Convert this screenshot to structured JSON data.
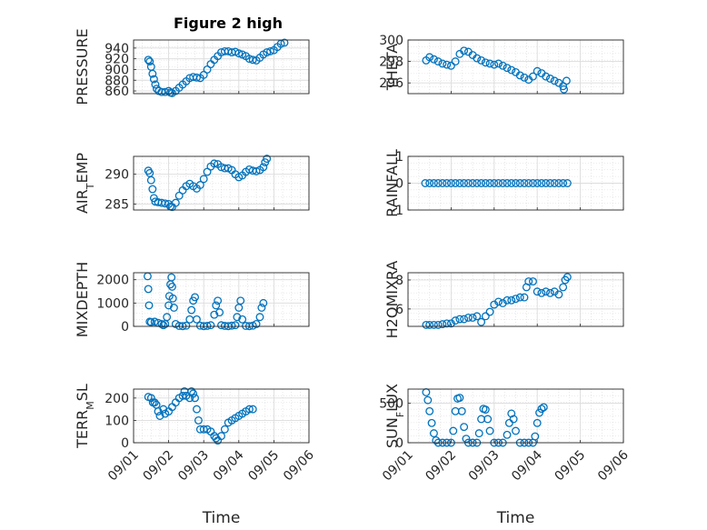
{
  "figure": {
    "title": "Figure 2 high",
    "marker_color": "#0072BD"
  },
  "chart_data": [
    {
      "type": "scatter",
      "title": "Figure 2 high",
      "ylabel": "PRESSURE",
      "xlabel": "",
      "xlim": [
        0,
        5
      ],
      "ylim": [
        855,
        955
      ],
      "yticks": [
        860,
        880,
        900,
        920,
        940
      ],
      "xticks": [],
      "grid": true,
      "points": [
        [
          0.42,
          918
        ],
        [
          0.46,
          915
        ],
        [
          0.5,
          905
        ],
        [
          0.54,
          892
        ],
        [
          0.58,
          882
        ],
        [
          0.62,
          872
        ],
        [
          0.66,
          864
        ],
        [
          0.72,
          860
        ],
        [
          0.8,
          858
        ],
        [
          0.9,
          858
        ],
        [
          1.0,
          860
        ],
        [
          1.05,
          857
        ],
        [
          1.1,
          856
        ],
        [
          1.2,
          860
        ],
        [
          1.3,
          866
        ],
        [
          1.4,
          872
        ],
        [
          1.5,
          878
        ],
        [
          1.6,
          884
        ],
        [
          1.7,
          886
        ],
        [
          1.8,
          885
        ],
        [
          1.9,
          884
        ],
        [
          2.0,
          890
        ],
        [
          2.1,
          900
        ],
        [
          2.2,
          910
        ],
        [
          2.3,
          918
        ],
        [
          2.4,
          925
        ],
        [
          2.5,
          932
        ],
        [
          2.6,
          934
        ],
        [
          2.7,
          934
        ],
        [
          2.8,
          932
        ],
        [
          2.9,
          933
        ],
        [
          3.0,
          930
        ],
        [
          3.1,
          928
        ],
        [
          3.2,
          925
        ],
        [
          3.3,
          920
        ],
        [
          3.4,
          918
        ],
        [
          3.5,
          917
        ],
        [
          3.6,
          922
        ],
        [
          3.7,
          928
        ],
        [
          3.8,
          932
        ],
        [
          3.9,
          934
        ],
        [
          4.0,
          936
        ],
        [
          4.1,
          942
        ],
        [
          4.2,
          948
        ],
        [
          4.3,
          950
        ]
      ]
    },
    {
      "type": "scatter",
      "title": "",
      "ylabel": "THETA",
      "xlabel": "",
      "xlim": [
        0,
        5
      ],
      "ylim": [
        295,
        300
      ],
      "yticks": [
        296,
        298,
        300
      ],
      "xticks": [],
      "grid": true,
      "points": [
        [
          0.42,
          298.1
        ],
        [
          0.5,
          298.4
        ],
        [
          0.6,
          298.2
        ],
        [
          0.7,
          298.0
        ],
        [
          0.8,
          297.8
        ],
        [
          0.9,
          297.7
        ],
        [
          1.0,
          297.6
        ],
        [
          1.1,
          298.0
        ],
        [
          1.2,
          298.7
        ],
        [
          1.3,
          299.0
        ],
        [
          1.4,
          298.9
        ],
        [
          1.5,
          298.6
        ],
        [
          1.6,
          298.3
        ],
        [
          1.7,
          298.1
        ],
        [
          1.8,
          297.9
        ],
        [
          1.9,
          297.8
        ],
        [
          2.0,
          297.7
        ],
        [
          2.1,
          297.8
        ],
        [
          2.2,
          297.6
        ],
        [
          2.3,
          297.4
        ],
        [
          2.4,
          297.2
        ],
        [
          2.5,
          297.0
        ],
        [
          2.6,
          296.7
        ],
        [
          2.7,
          296.5
        ],
        [
          2.8,
          296.3
        ],
        [
          2.9,
          296.6
        ],
        [
          3.0,
          297.1
        ],
        [
          3.1,
          296.9
        ],
        [
          3.2,
          296.6
        ],
        [
          3.3,
          296.4
        ],
        [
          3.4,
          296.2
        ],
        [
          3.5,
          296.0
        ],
        [
          3.6,
          295.7
        ],
        [
          3.62,
          295.4
        ],
        [
          3.68,
          296.2
        ]
      ]
    },
    {
      "type": "scatter",
      "title": "",
      "ylabel": "AIR_TEMP",
      "xlabel": "",
      "xlim": [
        0,
        5
      ],
      "ylim": [
        284,
        293
      ],
      "yticks": [
        285,
        290
      ],
      "xticks": [],
      "grid": true,
      "points": [
        [
          0.42,
          290.6
        ],
        [
          0.46,
          290.2
        ],
        [
          0.5,
          289.0
        ],
        [
          0.54,
          287.5
        ],
        [
          0.58,
          286.0
        ],
        [
          0.62,
          285.4
        ],
        [
          0.7,
          285.3
        ],
        [
          0.8,
          285.2
        ],
        [
          0.9,
          285.1
        ],
        [
          1.0,
          285.0
        ],
        [
          1.05,
          284.6
        ],
        [
          1.1,
          284.5
        ],
        [
          1.2,
          285.2
        ],
        [
          1.3,
          286.4
        ],
        [
          1.4,
          287.3
        ],
        [
          1.5,
          288.0
        ],
        [
          1.6,
          288.4
        ],
        [
          1.7,
          288.0
        ],
        [
          1.8,
          287.6
        ],
        [
          1.9,
          288.2
        ],
        [
          2.0,
          289.2
        ],
        [
          2.1,
          290.4
        ],
        [
          2.2,
          291.3
        ],
        [
          2.3,
          291.8
        ],
        [
          2.4,
          291.7
        ],
        [
          2.5,
          291.2
        ],
        [
          2.6,
          291.0
        ],
        [
          2.7,
          291.0
        ],
        [
          2.8,
          290.7
        ],
        [
          2.9,
          290.0
        ],
        [
          3.0,
          289.5
        ],
        [
          3.1,
          289.8
        ],
        [
          3.2,
          290.4
        ],
        [
          3.3,
          290.8
        ],
        [
          3.4,
          290.6
        ],
        [
          3.5,
          290.5
        ],
        [
          3.6,
          290.7
        ],
        [
          3.7,
          291.2
        ],
        [
          3.75,
          292.0
        ],
        [
          3.8,
          292.6
        ]
      ]
    },
    {
      "type": "scatter",
      "title": "",
      "ylabel": "RAINFALL",
      "xlabel": "",
      "xlim": [
        0,
        5
      ],
      "ylim": [
        -1,
        1
      ],
      "yticks": [
        -1,
        0,
        1
      ],
      "xticks": [],
      "grid": true,
      "points": [
        [
          0.4,
          0
        ],
        [
          0.5,
          0
        ],
        [
          0.6,
          0
        ],
        [
          0.7,
          0
        ],
        [
          0.8,
          0
        ],
        [
          0.9,
          0
        ],
        [
          1.0,
          0
        ],
        [
          1.1,
          0
        ],
        [
          1.2,
          0
        ],
        [
          1.3,
          0
        ],
        [
          1.4,
          0
        ],
        [
          1.5,
          0
        ],
        [
          1.6,
          0
        ],
        [
          1.7,
          0
        ],
        [
          1.8,
          0
        ],
        [
          1.9,
          0
        ],
        [
          2.0,
          0
        ],
        [
          2.1,
          0
        ],
        [
          2.2,
          0
        ],
        [
          2.3,
          0
        ],
        [
          2.4,
          0
        ],
        [
          2.5,
          0
        ],
        [
          2.6,
          0
        ],
        [
          2.7,
          0
        ],
        [
          2.8,
          0
        ],
        [
          2.9,
          0
        ],
        [
          3.0,
          0
        ],
        [
          3.1,
          0
        ],
        [
          3.2,
          0
        ],
        [
          3.3,
          0
        ],
        [
          3.4,
          0
        ],
        [
          3.5,
          0
        ],
        [
          3.6,
          0
        ],
        [
          3.7,
          0
        ]
      ]
    },
    {
      "type": "scatter",
      "title": "",
      "ylabel": "MIXDEPTH",
      "xlabel": "",
      "xlim": [
        0,
        5
      ],
      "ylim": [
        0,
        2300
      ],
      "yticks": [
        0,
        1000,
        2000
      ],
      "xticks": [],
      "grid": true,
      "points": [
        [
          0.4,
          2150
        ],
        [
          0.42,
          1600
        ],
        [
          0.44,
          900
        ],
        [
          0.46,
          200
        ],
        [
          0.5,
          180
        ],
        [
          0.6,
          200
        ],
        [
          0.7,
          150
        ],
        [
          0.8,
          100
        ],
        [
          0.85,
          50
        ],
        [
          0.9,
          100
        ],
        [
          0.95,
          400
        ],
        [
          1.0,
          900
        ],
        [
          1.02,
          1300
        ],
        [
          1.05,
          1800
        ],
        [
          1.08,
          2100
        ],
        [
          1.1,
          1700
        ],
        [
          1.12,
          1200
        ],
        [
          1.15,
          800
        ],
        [
          1.2,
          100
        ],
        [
          1.3,
          20
        ],
        [
          1.4,
          10
        ],
        [
          1.5,
          30
        ],
        [
          1.6,
          300
        ],
        [
          1.65,
          700
        ],
        [
          1.7,
          1100
        ],
        [
          1.75,
          1250
        ],
        [
          1.8,
          300
        ],
        [
          1.9,
          30
        ],
        [
          2.0,
          10
        ],
        [
          2.1,
          20
        ],
        [
          2.2,
          50
        ],
        [
          2.3,
          500
        ],
        [
          2.35,
          900
        ],
        [
          2.4,
          1100
        ],
        [
          2.45,
          600
        ],
        [
          2.5,
          50
        ],
        [
          2.6,
          20
        ],
        [
          2.7,
          10
        ],
        [
          2.8,
          30
        ],
        [
          2.9,
          50
        ],
        [
          2.95,
          400
        ],
        [
          3.0,
          800
        ],
        [
          3.05,
          1100
        ],
        [
          3.1,
          300
        ],
        [
          3.2,
          20
        ],
        [
          3.3,
          10
        ],
        [
          3.4,
          30
        ],
        [
          3.5,
          100
        ],
        [
          3.6,
          400
        ],
        [
          3.65,
          800
        ],
        [
          3.7,
          1000
        ]
      ]
    },
    {
      "type": "scatter",
      "title": "",
      "ylabel": "H2OMIXRA",
      "xlabel": "",
      "xlim": [
        0,
        5
      ],
      "ylim": [
        4.8,
        8.5
      ],
      "yticks": [
        6,
        8
      ],
      "xticks": [],
      "grid": true,
      "points": [
        [
          0.42,
          4.9
        ],
        [
          0.5,
          4.9
        ],
        [
          0.6,
          4.9
        ],
        [
          0.7,
          4.9
        ],
        [
          0.8,
          4.95
        ],
        [
          0.9,
          5.0
        ],
        [
          1.0,
          5.0
        ],
        [
          1.1,
          5.2
        ],
        [
          1.2,
          5.3
        ],
        [
          1.3,
          5.3
        ],
        [
          1.4,
          5.4
        ],
        [
          1.5,
          5.4
        ],
        [
          1.6,
          5.5
        ],
        [
          1.7,
          5.1
        ],
        [
          1.8,
          5.5
        ],
        [
          1.9,
          5.8
        ],
        [
          2.0,
          6.3
        ],
        [
          2.1,
          6.5
        ],
        [
          2.2,
          6.4
        ],
        [
          2.3,
          6.6
        ],
        [
          2.4,
          6.6
        ],
        [
          2.5,
          6.7
        ],
        [
          2.6,
          6.8
        ],
        [
          2.7,
          6.8
        ],
        [
          2.75,
          7.5
        ],
        [
          2.8,
          7.9
        ],
        [
          2.9,
          7.9
        ],
        [
          3.0,
          7.2
        ],
        [
          3.1,
          7.1
        ],
        [
          3.2,
          7.2
        ],
        [
          3.3,
          7.1
        ],
        [
          3.4,
          7.2
        ],
        [
          3.5,
          7.0
        ],
        [
          3.6,
          7.5
        ],
        [
          3.65,
          8.0
        ],
        [
          3.7,
          8.2
        ]
      ]
    },
    {
      "type": "scatter",
      "title": "",
      "ylabel": "TERR_MSL",
      "xlabel": "Time",
      "xlim": [
        0,
        5
      ],
      "ylim": [
        0,
        240
      ],
      "yticks": [
        0,
        100,
        200
      ],
      "xticks": [
        "09/01",
        "09/02",
        "09/03",
        "09/04",
        "09/05",
        "09/06"
      ],
      "grid": true,
      "points": [
        [
          0.42,
          205
        ],
        [
          0.5,
          200
        ],
        [
          0.55,
          180
        ],
        [
          0.6,
          180
        ],
        [
          0.65,
          170
        ],
        [
          0.7,
          140
        ],
        [
          0.75,
          120
        ],
        [
          0.85,
          150
        ],
        [
          0.9,
          130
        ],
        [
          1.0,
          140
        ],
        [
          1.1,
          160
        ],
        [
          1.2,
          180
        ],
        [
          1.3,
          200
        ],
        [
          1.4,
          210
        ],
        [
          1.45,
          230
        ],
        [
          1.5,
          210
        ],
        [
          1.6,
          200
        ],
        [
          1.65,
          230
        ],
        [
          1.7,
          220
        ],
        [
          1.75,
          200
        ],
        [
          1.8,
          150
        ],
        [
          1.85,
          100
        ],
        [
          1.9,
          60
        ],
        [
          2.0,
          60
        ],
        [
          2.1,
          60
        ],
        [
          2.2,
          50
        ],
        [
          2.3,
          30
        ],
        [
          2.35,
          20
        ],
        [
          2.4,
          10
        ],
        [
          2.5,
          30
        ],
        [
          2.6,
          60
        ],
        [
          2.7,
          90
        ],
        [
          2.8,
          100
        ],
        [
          2.9,
          110
        ],
        [
          3.0,
          120
        ],
        [
          3.1,
          130
        ],
        [
          3.2,
          140
        ],
        [
          3.3,
          150
        ],
        [
          3.4,
          150
        ]
      ]
    },
    {
      "type": "scatter",
      "title": "",
      "ylabel": "SUN_FLUX",
      "xlabel": "Time",
      "xlim": [
        0,
        5
      ],
      "ylim": [
        0,
        680
      ],
      "yticks": [
        0,
        500
      ],
      "xticks": [
        "09/01",
        "09/02",
        "09/03",
        "09/04",
        "09/05",
        "09/06"
      ],
      "grid": true,
      "points": [
        [
          0.42,
          640
        ],
        [
          0.46,
          540
        ],
        [
          0.5,
          400
        ],
        [
          0.55,
          250
        ],
        [
          0.6,
          120
        ],
        [
          0.65,
          30
        ],
        [
          0.7,
          0
        ],
        [
          0.8,
          0
        ],
        [
          0.9,
          0
        ],
        [
          1.0,
          0
        ],
        [
          1.05,
          150
        ],
        [
          1.1,
          400
        ],
        [
          1.15,
          560
        ],
        [
          1.2,
          570
        ],
        [
          1.25,
          400
        ],
        [
          1.3,
          200
        ],
        [
          1.35,
          50
        ],
        [
          1.4,
          0
        ],
        [
          1.5,
          0
        ],
        [
          1.6,
          0
        ],
        [
          1.65,
          120
        ],
        [
          1.7,
          300
        ],
        [
          1.75,
          430
        ],
        [
          1.8,
          420
        ],
        [
          1.85,
          300
        ],
        [
          1.9,
          150
        ],
        [
          2.0,
          0
        ],
        [
          2.1,
          0
        ],
        [
          2.2,
          0
        ],
        [
          2.3,
          100
        ],
        [
          2.35,
          250
        ],
        [
          2.4,
          370
        ],
        [
          2.45,
          300
        ],
        [
          2.5,
          150
        ],
        [
          2.6,
          0
        ],
        [
          2.7,
          0
        ],
        [
          2.8,
          0
        ],
        [
          2.9,
          0
        ],
        [
          2.95,
          80
        ],
        [
          3.0,
          250
        ],
        [
          3.05,
          380
        ],
        [
          3.1,
          430
        ],
        [
          3.15,
          450
        ]
      ]
    }
  ]
}
